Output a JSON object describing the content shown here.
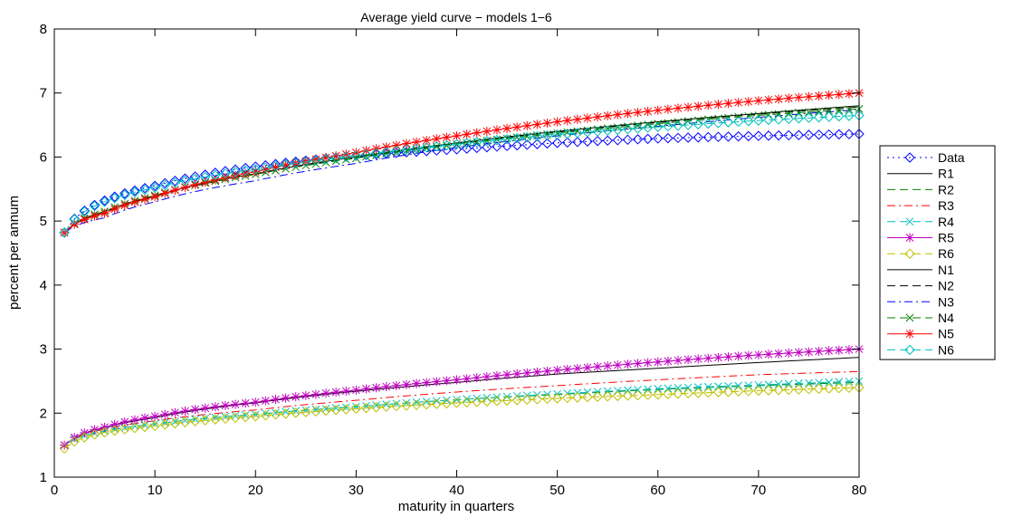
{
  "chart_data": {
    "type": "line",
    "title": "Average yield curve − models 1−6",
    "xlabel": "maturity in quarters",
    "ylabel": "percent per annum",
    "xlim": [
      0,
      80
    ],
    "ylim": [
      1,
      8
    ],
    "xticks": [
      0,
      10,
      20,
      30,
      40,
      50,
      60,
      70,
      80
    ],
    "yticks": [
      1,
      2,
      3,
      4,
      5,
      6,
      7,
      8
    ],
    "grid": false,
    "legend_position": "outside-right",
    "x": [
      1,
      5,
      10,
      20,
      30,
      40,
      50,
      60,
      70,
      80
    ],
    "series": [
      {
        "name": "Data",
        "color": "#0000ff",
        "dash": "dotted",
        "marker": "diamond",
        "values": [
          4.82,
          5.32,
          5.55,
          5.85,
          6.02,
          6.12,
          6.22,
          6.29,
          6.33,
          6.36
        ]
      },
      {
        "name": "R1",
        "color": "#000000",
        "dash": "solid",
        "marker": "none",
        "values": [
          1.5,
          1.77,
          1.93,
          2.16,
          2.34,
          2.48,
          2.61,
          2.7,
          2.79,
          2.87
        ]
      },
      {
        "name": "R2",
        "color": "#008000",
        "dash": "dashed",
        "marker": "none",
        "values": [
          1.5,
          1.72,
          1.83,
          1.98,
          2.1,
          2.21,
          2.29,
          2.37,
          2.43,
          2.48
        ]
      },
      {
        "name": "R3",
        "color": "#ff0000",
        "dash": "dashdot",
        "marker": "none",
        "values": [
          1.5,
          1.75,
          1.88,
          2.05,
          2.2,
          2.33,
          2.43,
          2.52,
          2.6,
          2.65
        ]
      },
      {
        "name": "R4",
        "color": "#00bfbf",
        "dash": "dashed",
        "marker": "x",
        "values": [
          1.5,
          1.72,
          1.83,
          1.98,
          2.1,
          2.21,
          2.3,
          2.38,
          2.44,
          2.5
        ]
      },
      {
        "name": "R5",
        "color": "#bf00bf",
        "dash": "solid",
        "marker": "star",
        "values": [
          1.5,
          1.78,
          1.95,
          2.17,
          2.36,
          2.52,
          2.67,
          2.8,
          2.91,
          3.0
        ]
      },
      {
        "name": "R6",
        "color": "#bfbf00",
        "dash": "dashed",
        "marker": "diamond",
        "values": [
          1.45,
          1.7,
          1.8,
          1.95,
          2.07,
          2.16,
          2.23,
          2.29,
          2.35,
          2.4
        ]
      },
      {
        "name": "N1",
        "color": "#000000",
        "dash": "solid",
        "marker": "none",
        "values": [
          4.82,
          5.15,
          5.39,
          5.74,
          6.0,
          6.22,
          6.4,
          6.55,
          6.68,
          6.8
        ]
      },
      {
        "name": "N2",
        "color": "#000000",
        "dash": "dashed",
        "marker": "none",
        "values": [
          4.82,
          5.14,
          5.38,
          5.73,
          5.99,
          6.21,
          6.39,
          6.54,
          6.67,
          6.78
        ]
      },
      {
        "name": "N3",
        "color": "#0000ff",
        "dash": "dashdot",
        "marker": "none",
        "values": [
          4.82,
          5.05,
          5.3,
          5.63,
          5.9,
          6.15,
          6.33,
          6.48,
          6.62,
          6.74
        ]
      },
      {
        "name": "N4",
        "color": "#008000",
        "dash": "dashed",
        "marker": "x",
        "values": [
          4.82,
          5.15,
          5.4,
          5.73,
          5.98,
          6.2,
          6.37,
          6.52,
          6.65,
          6.75
        ]
      },
      {
        "name": "N5",
        "color": "#ff0000",
        "dash": "solid",
        "marker": "star",
        "values": [
          4.82,
          5.12,
          5.38,
          5.77,
          6.07,
          6.33,
          6.55,
          6.73,
          6.88,
          7.0
        ]
      },
      {
        "name": "N6",
        "color": "#00bfbf",
        "dash": "dashed",
        "marker": "diamond",
        "values": [
          4.82,
          5.3,
          5.52,
          5.81,
          6.02,
          6.2,
          6.35,
          6.47,
          6.57,
          6.65
        ]
      }
    ]
  }
}
